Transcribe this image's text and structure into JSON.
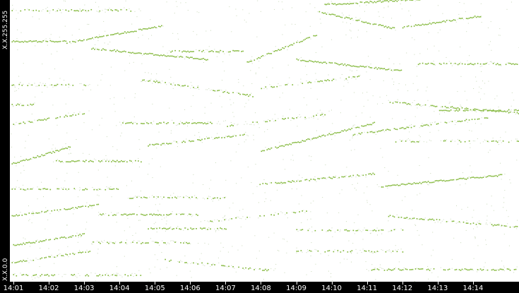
{
  "chart_data": {
    "type": "scatter",
    "title": "",
    "xlabel": "",
    "ylabel": "",
    "y_axis_labels": {
      "top": "X.X.255.255",
      "bottom": "X.X.0.0"
    },
    "x_ticks": [
      "14:01",
      "14:02",
      "14:03",
      "14:04",
      "14:05",
      "14:06",
      "14:07",
      "14:08",
      "14:09",
      "14:10",
      "14:11",
      "14:12",
      "14:13",
      "14:14"
    ],
    "xlim_minutes": [
      0.9,
      15.3
    ],
    "ylim_fraction": [
      0,
      1
    ],
    "point_color": "#7bb32e",
    "faint_color": "#c8d8b8",
    "background": "#ffffff",
    "axis_background": "#000000",
    "axis_text_color": "#ffffff",
    "streaks": [
      {
        "x0": 0.95,
        "x1": 4.6,
        "y": 0.965,
        "slope": 0.0,
        "density": "faint"
      },
      {
        "x0": 9.8,
        "x1": 12.5,
        "y": 0.985,
        "slope": 0.002,
        "density": "strong"
      },
      {
        "x0": 9.6,
        "x1": 11.8,
        "y": 0.96,
        "slope": -0.006,
        "density": "strong"
      },
      {
        "x0": 12.0,
        "x1": 14.2,
        "y": 0.905,
        "slope": 0.004,
        "density": "strong"
      },
      {
        "x0": 0.95,
        "x1": 2.5,
        "y": 0.855,
        "slope": 0.0,
        "density": "strong"
      },
      {
        "x0": 2.5,
        "x1": 5.2,
        "y": 0.85,
        "slope": 0.006,
        "density": "strong"
      },
      {
        "x0": 3.2,
        "x1": 6.5,
        "y": 0.83,
        "slope": -0.004,
        "density": "strong"
      },
      {
        "x0": 5.4,
        "x1": 7.5,
        "y": 0.82,
        "slope": 0.0,
        "density": "medium"
      },
      {
        "x0": 7.6,
        "x1": 9.6,
        "y": 0.78,
        "slope": 0.01,
        "density": "strong"
      },
      {
        "x0": 9.0,
        "x1": 12.0,
        "y": 0.79,
        "slope": -0.004,
        "density": "strong"
      },
      {
        "x0": 12.4,
        "x1": 15.3,
        "y": 0.775,
        "slope": 0.0,
        "density": "medium"
      },
      {
        "x0": 0.95,
        "x1": 3.2,
        "y": 0.7,
        "slope": 0.0,
        "density": "faint"
      },
      {
        "x0": 4.6,
        "x1": 7.8,
        "y": 0.72,
        "slope": -0.006,
        "density": "faint"
      },
      {
        "x0": 8.0,
        "x1": 10.8,
        "y": 0.69,
        "slope": 0.004,
        "density": "faint"
      },
      {
        "x0": 11.6,
        "x1": 15.3,
        "y": 0.64,
        "slope": -0.004,
        "density": "medium"
      },
      {
        "x0": 0.95,
        "x1": 1.6,
        "y": 0.63,
        "slope": 0.0,
        "density": "medium"
      },
      {
        "x0": 13.0,
        "x1": 15.3,
        "y": 0.61,
        "slope": 0.0,
        "density": "medium"
      },
      {
        "x0": 0.95,
        "x1": 3.0,
        "y": 0.56,
        "slope": 0.004,
        "density": "medium"
      },
      {
        "x0": 4.0,
        "x1": 6.6,
        "y": 0.565,
        "slope": 0.0,
        "density": "medium"
      },
      {
        "x0": 7.0,
        "x1": 9.8,
        "y": 0.555,
        "slope": 0.004,
        "density": "faint"
      },
      {
        "x0": 10.6,
        "x1": 14.4,
        "y": 0.525,
        "slope": 0.006,
        "density": "medium"
      },
      {
        "x0": 4.8,
        "x1": 7.6,
        "y": 0.485,
        "slope": 0.004,
        "density": "medium"
      },
      {
        "x0": 8.0,
        "x1": 11.2,
        "y": 0.465,
        "slope": 0.01,
        "density": "strong"
      },
      {
        "x0": 11.8,
        "x1": 15.3,
        "y": 0.5,
        "slope": 0.0,
        "density": "faint"
      },
      {
        "x0": 0.95,
        "x1": 2.6,
        "y": 0.42,
        "slope": 0.006,
        "density": "strong"
      },
      {
        "x0": 2.2,
        "x1": 4.6,
        "y": 0.43,
        "slope": 0.0,
        "density": "medium"
      },
      {
        "x0": 7.8,
        "x1": 11.2,
        "y": 0.345,
        "slope": 0.004,
        "density": "medium"
      },
      {
        "x0": 11.4,
        "x1": 14.8,
        "y": 0.34,
        "slope": 0.004,
        "density": "strong"
      },
      {
        "x0": 0.95,
        "x1": 4.0,
        "y": 0.33,
        "slope": 0.0,
        "density": "faint"
      },
      {
        "x0": 4.2,
        "x1": 7.0,
        "y": 0.3,
        "slope": 0.0,
        "density": "faint"
      },
      {
        "x0": 0.95,
        "x1": 3.4,
        "y": 0.235,
        "slope": 0.004,
        "density": "medium"
      },
      {
        "x0": 3.4,
        "x1": 6.2,
        "y": 0.24,
        "slope": 0.0,
        "density": "medium"
      },
      {
        "x0": 6.4,
        "x1": 9.4,
        "y": 0.215,
        "slope": 0.004,
        "density": "faint"
      },
      {
        "x0": 11.6,
        "x1": 15.3,
        "y": 0.235,
        "slope": -0.004,
        "density": "medium"
      },
      {
        "x0": 4.8,
        "x1": 7.0,
        "y": 0.19,
        "slope": 0.0,
        "density": "medium"
      },
      {
        "x0": 9.0,
        "x1": 12.0,
        "y": 0.185,
        "slope": 0.0,
        "density": "faint"
      },
      {
        "x0": 0.95,
        "x1": 3.0,
        "y": 0.13,
        "slope": 0.004,
        "density": "strong"
      },
      {
        "x0": 3.2,
        "x1": 6.0,
        "y": 0.14,
        "slope": 0.0,
        "density": "faint"
      },
      {
        "x0": 9.0,
        "x1": 12.0,
        "y": 0.11,
        "slope": 0.0,
        "density": "faint"
      },
      {
        "x0": 0.95,
        "x1": 3.2,
        "y": 0.07,
        "slope": 0.004,
        "density": "medium"
      },
      {
        "x0": 5.2,
        "x1": 8.4,
        "y": 0.08,
        "slope": -0.004,
        "density": "faint"
      },
      {
        "x0": 11.0,
        "x1": 15.3,
        "y": 0.045,
        "slope": 0.0,
        "density": "medium"
      },
      {
        "x0": 0.95,
        "x1": 4.6,
        "y": 0.025,
        "slope": 0.0,
        "density": "faint"
      }
    ]
  }
}
